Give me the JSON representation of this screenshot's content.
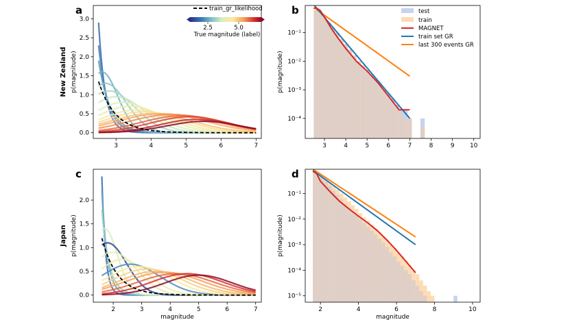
{
  "row_labels": [
    "New Zealand",
    "Japan"
  ],
  "legend_b": {
    "test": "test",
    "train": "train",
    "magnet": "MAGNET",
    "train_gr": "train set GR",
    "last300": "last 300 events GR"
  },
  "legend_a": {
    "label": "train_gr_likelihood",
    "cbar_label": "True magnitude (label)",
    "cbar_ticks": [
      "2.5",
      "5.0"
    ]
  },
  "colors": {
    "test": "#c7d3ef",
    "train": "#fddcb5",
    "overlap": "#e0cfc6",
    "magnet": "#d62728",
    "train_gr": "#1f77b4",
    "last300": "#ff7f0e"
  },
  "chart_data": [
    {
      "panel": "a",
      "type": "line",
      "xlabel": "",
      "ylabel": "p(magnitude)",
      "xlim": [
        2.35,
        7.15
      ],
      "ylim": [
        -0.15,
        3.35
      ],
      "xticks": [
        "3",
        "4",
        "5",
        "6",
        "7"
      ],
      "xtick_values": [
        3,
        4,
        5,
        6,
        7
      ],
      "yticks": [
        "0.0",
        "0.5",
        "1.0",
        "1.5",
        "2.0",
        "2.5",
        "3.0"
      ],
      "ytick_values": [
        0,
        0.5,
        1.0,
        1.5,
        2.0,
        2.5,
        3.0
      ],
      "mc": 2.5,
      "max_mag": 7,
      "gr_curve": {
        "name": "train_gr_likelihood",
        "b_value": 0.9
      },
      "predicted_curves": [
        {
          "label_mag": 2.5,
          "peak": 2.9,
          "mean": 2.5,
          "spread": 0.15
        },
        {
          "label_mag": 2.7,
          "peak": 2.3,
          "mean": 2.5,
          "spread": 0.2
        },
        {
          "label_mag": 2.9,
          "peak": 1.9,
          "mean": 2.5,
          "spread": 0.25
        },
        {
          "label_mag": 3.1,
          "peak": 1.6,
          "mean": 2.6,
          "spread": 0.3
        },
        {
          "label_mag": 3.3,
          "peak": 1.3,
          "mean": 2.7,
          "spread": 0.4
        },
        {
          "label_mag": 3.5,
          "peak": 1.1,
          "mean": 2.8,
          "spread": 0.5
        },
        {
          "label_mag": 3.7,
          "peak": 0.95,
          "mean": 3.0,
          "spread": 0.55
        },
        {
          "label_mag": 3.9,
          "peak": 0.8,
          "mean": 3.2,
          "spread": 0.6
        },
        {
          "label_mag": 4.1,
          "peak": 0.7,
          "mean": 3.4,
          "spread": 0.65
        },
        {
          "label_mag": 4.3,
          "peak": 0.6,
          "mean": 3.6,
          "spread": 0.7
        },
        {
          "label_mag": 4.5,
          "peak": 0.55,
          "mean": 3.8,
          "spread": 0.75
        },
        {
          "label_mag": 4.7,
          "peak": 0.5,
          "mean": 4.0,
          "spread": 0.8
        },
        {
          "label_mag": 4.9,
          "peak": 0.5,
          "mean": 4.3,
          "spread": 0.85
        },
        {
          "label_mag": 5.1,
          "peak": 0.48,
          "mean": 4.6,
          "spread": 0.85
        },
        {
          "label_mag": 5.3,
          "peak": 0.45,
          "mean": 4.9,
          "spread": 0.8
        },
        {
          "label_mag": 5.5,
          "peak": 0.42,
          "mean": 5.1,
          "spread": 0.75
        },
        {
          "label_mag": 5.7,
          "peak": 0.35,
          "mean": 5.3,
          "spread": 0.7
        },
        {
          "label_mag": 6.0,
          "peak": 0.3,
          "mean": 5.5,
          "spread": 0.7
        }
      ]
    },
    {
      "panel": "b",
      "type": "bar",
      "xlabel": "",
      "ylabel": "p(magnitude)",
      "yscale": "log",
      "xlim": [
        2.1,
        10.3
      ],
      "ylim_log10": [
        -4.7,
        -0.05
      ],
      "xticks": [
        "3",
        "4",
        "5",
        "6",
        "7",
        "8",
        "9",
        "10"
      ],
      "xtick_values": [
        3,
        4,
        5,
        6,
        7,
        8,
        9,
        10
      ],
      "yticks": [
        "10⁻¹",
        "10⁻²",
        "10⁻³",
        "10⁻⁴"
      ],
      "ytick_values": [
        0.1,
        0.01,
        0.001,
        0.0001
      ],
      "bin_width": 0.2,
      "bin_start": 2.5,
      "test": [
        0.6,
        0.55,
        0.35,
        0.22,
        0.15,
        0.1,
        0.06,
        0.04,
        0.026,
        0.016,
        0.01,
        0.007,
        0.005,
        0.0035,
        0.0022,
        0.0016,
        0.001,
        0.00075,
        0.0005,
        0.0003,
        0.0002,
        0.0002,
        0.0001,
        0,
        0,
        0.0001
      ],
      "train": [
        0.62,
        0.55,
        0.35,
        0.22,
        0.14,
        0.095,
        0.06,
        0.04,
        0.025,
        0.016,
        0.01,
        0.007,
        0.0045,
        0.003,
        0.002,
        0.0014,
        0.001,
        0.0006,
        0.0004,
        0.00025,
        0.00015,
        0.0001,
        0.0001,
        0,
        0,
        5e-05
      ],
      "lines": [
        {
          "name": "MAGNET",
          "x": [
            2.5,
            2.6,
            2.8,
            3.0,
            3.3,
            3.6,
            4.0,
            4.5,
            5.0,
            5.5,
            6.0,
            6.5,
            7.0
          ],
          "y": [
            0.7,
            0.75,
            0.6,
            0.35,
            0.15,
            0.07,
            0.028,
            0.01,
            0.0045,
            0.0018,
            0.0006,
            0.0002,
            0.0002
          ]
        },
        {
          "name": "train set GR",
          "x": [
            2.5,
            7.0
          ],
          "y": [
            0.95,
            0.0001
          ]
        },
        {
          "name": "last 300 events GR",
          "x": [
            2.5,
            7.0
          ],
          "y": [
            0.75,
            0.003
          ]
        }
      ]
    },
    {
      "panel": "c",
      "type": "line",
      "xlabel": "magnitude",
      "ylabel": "p(magnitude)",
      "xlim": [
        1.3,
        7.2
      ],
      "ylim": [
        -0.15,
        2.65
      ],
      "xticks": [
        "2",
        "3",
        "4",
        "5",
        "6",
        "7"
      ],
      "xtick_values": [
        2,
        3,
        4,
        5,
        6,
        7
      ],
      "yticks": [
        "0.0",
        "0.5",
        "1.0",
        "1.5",
        "2.0"
      ],
      "ytick_values": [
        0,
        0.5,
        1.0,
        1.5,
        2.0
      ],
      "mc": 1.6,
      "max_mag": 7,
      "gr_curve": {
        "name": "train_gr_likelihood",
        "b_value": 0.8
      },
      "predicted_curves": [
        {
          "label_mag": 2.5,
          "peak": 2.5,
          "mean": 1.6,
          "spread": 0.1
        },
        {
          "label_mag": 3.0,
          "peak": 2.2,
          "mean": 1.6,
          "spread": 0.15
        },
        {
          "label_mag": 3.4,
          "peak": 1.8,
          "mean": 1.6,
          "spread": 0.2
        },
        {
          "label_mag": 3.8,
          "peak": 1.4,
          "mean": 1.7,
          "spread": 0.3
        },
        {
          "label_mag": 2.2,
          "peak": 1.1,
          "mean": 1.8,
          "spread": 0.45
        },
        {
          "label_mag": 4.0,
          "peak": 0.9,
          "mean": 2.0,
          "spread": 0.55
        },
        {
          "label_mag": 4.2,
          "peak": 0.75,
          "mean": 2.3,
          "spread": 0.6
        },
        {
          "label_mag": 2.8,
          "peak": 0.65,
          "mean": 2.6,
          "spread": 0.7
        },
        {
          "label_mag": 4.4,
          "peak": 0.6,
          "mean": 2.9,
          "spread": 0.75
        },
        {
          "label_mag": 4.6,
          "peak": 0.55,
          "mean": 3.2,
          "spread": 0.8
        },
        {
          "label_mag": 4.8,
          "peak": 0.5,
          "mean": 3.5,
          "spread": 0.85
        },
        {
          "label_mag": 5.0,
          "peak": 0.48,
          "mean": 3.8,
          "spread": 0.9
        },
        {
          "label_mag": 5.3,
          "peak": 0.45,
          "mean": 4.2,
          "spread": 0.9
        },
        {
          "label_mag": 5.6,
          "peak": 0.45,
          "mean": 4.6,
          "spread": 0.85
        },
        {
          "label_mag": 6.0,
          "peak": 0.42,
          "mean": 5.0,
          "spread": 0.8
        }
      ]
    },
    {
      "panel": "d",
      "type": "bar",
      "xlabel": "magnitude",
      "ylabel": "p(magnitude)",
      "yscale": "log",
      "xlim": [
        1.2,
        10.4
      ],
      "ylim_log10": [
        -5.25,
        -0.05
      ],
      "xticks": [
        "2",
        "4",
        "6",
        "8",
        "10"
      ],
      "xtick_values": [
        2,
        4,
        6,
        8,
        10
      ],
      "yticks": [
        "10⁻¹",
        "10⁻²",
        "10⁻³",
        "10⁻⁴",
        "10⁻⁵"
      ],
      "ytick_values": [
        0.1,
        0.01,
        0.001,
        0.0001,
        1e-05
      ],
      "bin_width": 0.2,
      "bin_start": 1.6,
      "test": [
        0.7,
        0.6,
        0.45,
        0.3,
        0.2,
        0.13,
        0.09,
        0.06,
        0.04,
        0.028,
        0.02,
        0.014,
        0.01,
        0.007,
        0.005,
        0.0035,
        0.0025,
        0.0017,
        0.0012,
        0.0008,
        0.0005,
        0.00035,
        0.00022,
        0.00015,
        0.0001,
        7e-05,
        4e-05,
        2.5e-05,
        1.5e-05,
        1e-05,
        0,
        0,
        0,
        0,
        0,
        0,
        0,
        1e-05
      ],
      "train": [
        0.72,
        0.62,
        0.5,
        0.38,
        0.27,
        0.19,
        0.14,
        0.1,
        0.07,
        0.05,
        0.035,
        0.025,
        0.017,
        0.012,
        0.0085,
        0.006,
        0.0042,
        0.003,
        0.0021,
        0.0015,
        0.001,
        0.0007,
        0.0005,
        0.00035,
        0.00024,
        0.00016,
        0.0001,
        7e-05,
        4e-05,
        2.5e-05,
        1.5e-05,
        1e-05,
        0,
        0,
        0,
        0,
        0,
        0
      ],
      "lines": [
        {
          "name": "MAGNET",
          "x": [
            1.6,
            1.8,
            2.0,
            2.5,
            3.0,
            3.5,
            4.0,
            4.5,
            5.0,
            5.5,
            6.0,
            6.5,
            7.0
          ],
          "y": [
            0.75,
            0.6,
            0.3,
            0.12,
            0.05,
            0.025,
            0.013,
            0.007,
            0.0035,
            0.0015,
            0.0006,
            0.00022,
            8e-05
          ]
        },
        {
          "name": "train set GR",
          "x": [
            1.6,
            7.0
          ],
          "y": [
            0.8,
            0.001
          ]
        },
        {
          "name": "last 300 events GR",
          "x": [
            1.6,
            7.0
          ],
          "y": [
            0.9,
            0.002
          ]
        }
      ]
    }
  ]
}
